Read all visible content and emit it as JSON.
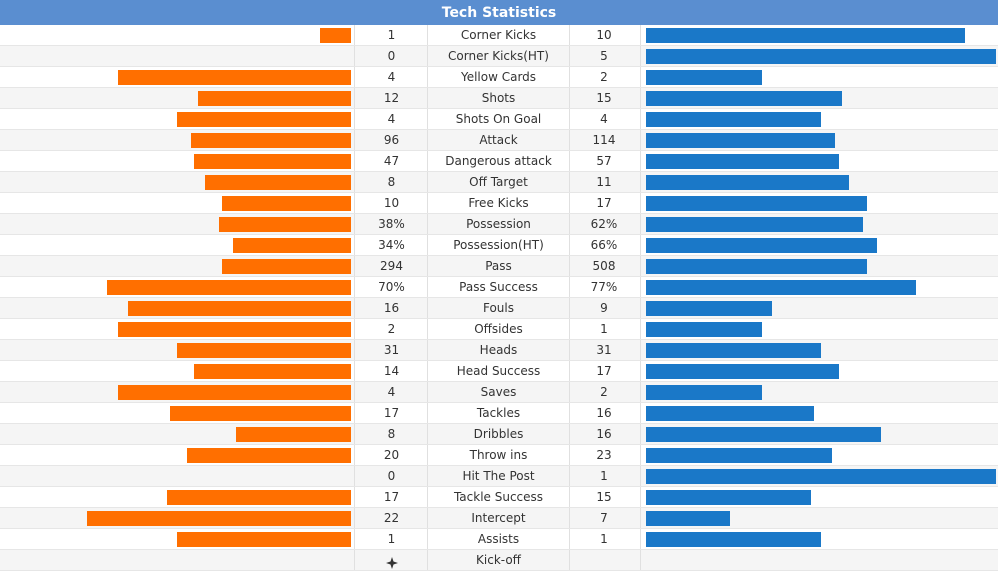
{
  "title": "Tech Statistics",
  "colors": {
    "header": "#5a8ed0",
    "home_bar": "#ff6f00",
    "away_bar": "#1a78c8"
  },
  "rows": [
    {
      "label": "Corner Kicks",
      "home": "1",
      "away": "10",
      "home_bar": 0.09,
      "away_bar": 0.91
    },
    {
      "label": "Corner Kicks(HT)",
      "home": "0",
      "away": "5",
      "home_bar": 0.0,
      "away_bar": 1.0
    },
    {
      "label": "Yellow Cards",
      "home": "4",
      "away": "2",
      "home_bar": 0.67,
      "away_bar": 0.33
    },
    {
      "label": "Shots",
      "home": "12",
      "away": "15",
      "home_bar": 0.44,
      "away_bar": 0.56
    },
    {
      "label": "Shots On Goal",
      "home": "4",
      "away": "4",
      "home_bar": 0.5,
      "away_bar": 0.5
    },
    {
      "label": "Attack",
      "home": "96",
      "away": "114",
      "home_bar": 0.46,
      "away_bar": 0.54
    },
    {
      "label": "Dangerous attack",
      "home": "47",
      "away": "57",
      "home_bar": 0.45,
      "away_bar": 0.55
    },
    {
      "label": "Off Target",
      "home": "8",
      "away": "11",
      "home_bar": 0.42,
      "away_bar": 0.58
    },
    {
      "label": "Free Kicks",
      "home": "10",
      "away": "17",
      "home_bar": 0.37,
      "away_bar": 0.63
    },
    {
      "label": "Possession",
      "home": "38%",
      "away": "62%",
      "home_bar": 0.38,
      "away_bar": 0.62
    },
    {
      "label": "Possession(HT)",
      "home": "34%",
      "away": "66%",
      "home_bar": 0.34,
      "away_bar": 0.66
    },
    {
      "label": "Pass",
      "home": "294",
      "away": "508",
      "home_bar": 0.37,
      "away_bar": 0.63
    },
    {
      "label": "Pass Success",
      "home": "70%",
      "away": "77%",
      "home_bar": 0.7,
      "away_bar": 0.77
    },
    {
      "label": "Fouls",
      "home": "16",
      "away": "9",
      "home_bar": 0.64,
      "away_bar": 0.36
    },
    {
      "label": "Offsides",
      "home": "2",
      "away": "1",
      "home_bar": 0.67,
      "away_bar": 0.33
    },
    {
      "label": "Heads",
      "home": "31",
      "away": "31",
      "home_bar": 0.5,
      "away_bar": 0.5
    },
    {
      "label": "Head Success",
      "home": "14",
      "away": "17",
      "home_bar": 0.45,
      "away_bar": 0.55
    },
    {
      "label": "Saves",
      "home": "4",
      "away": "2",
      "home_bar": 0.67,
      "away_bar": 0.33
    },
    {
      "label": "Tackles",
      "home": "17",
      "away": "16",
      "home_bar": 0.52,
      "away_bar": 0.48
    },
    {
      "label": "Dribbles",
      "home": "8",
      "away": "16",
      "home_bar": 0.33,
      "away_bar": 0.67
    },
    {
      "label": "Throw ins",
      "home": "20",
      "away": "23",
      "home_bar": 0.47,
      "away_bar": 0.53
    },
    {
      "label": "Hit The Post",
      "home": "0",
      "away": "1",
      "home_bar": 0.0,
      "away_bar": 1.0
    },
    {
      "label": "Tackle Success",
      "home": "17",
      "away": "15",
      "home_bar": 0.53,
      "away_bar": 0.47
    },
    {
      "label": "Intercept",
      "home": "22",
      "away": "7",
      "home_bar": 0.76,
      "away_bar": 0.24
    },
    {
      "label": "Assists",
      "home": "1",
      "away": "1",
      "home_bar": 0.5,
      "away_bar": 0.5
    }
  ],
  "kickoff": {
    "label": "Kick-off",
    "icon": "football-icon"
  }
}
